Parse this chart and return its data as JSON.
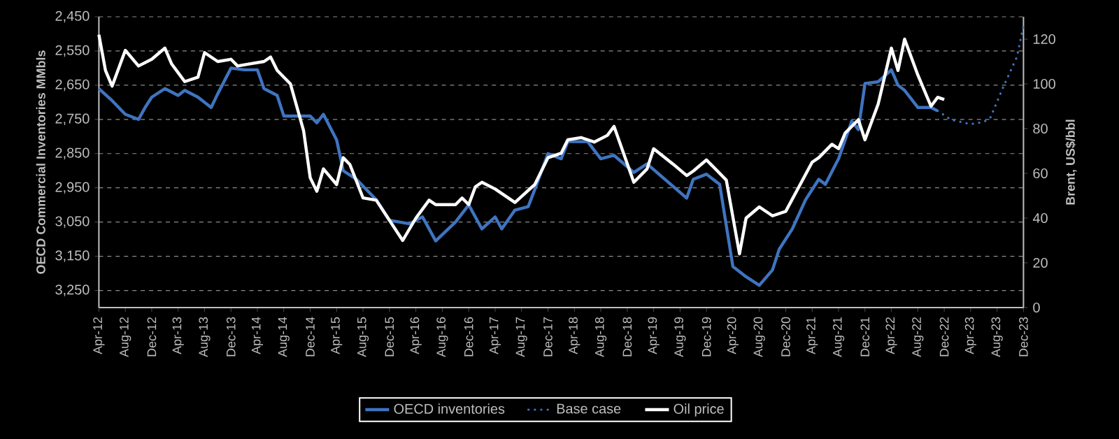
{
  "chart_data": {
    "type": "line",
    "ylabel": "OECD Commercial Inventories MMbls",
    "y2label": "Brent, US$/bbl",
    "xlim": [
      "2012-04",
      "2023-12"
    ],
    "xticks": [
      {
        "value": "2012-04",
        "label": "Apr-12"
      },
      {
        "value": "2012-08",
        "label": "Aug-12"
      },
      {
        "value": "2012-12",
        "label": "Dec-12"
      },
      {
        "value": "2013-04",
        "label": "Apr-13"
      },
      {
        "value": "2013-08",
        "label": "Aug-13"
      },
      {
        "value": "2013-12",
        "label": "Dec-13"
      },
      {
        "value": "2014-04",
        "label": "Apr-14"
      },
      {
        "value": "2014-08",
        "label": "Aug-14"
      },
      {
        "value": "2014-12",
        "label": "Dec-14"
      },
      {
        "value": "2015-04",
        "label": "Apr-15"
      },
      {
        "value": "2015-08",
        "label": "Aug-15"
      },
      {
        "value": "2015-12",
        "label": "Dec-15"
      },
      {
        "value": "2016-04",
        "label": "Apr-16"
      },
      {
        "value": "2016-08",
        "label": "Aug-16"
      },
      {
        "value": "2016-12",
        "label": "Dec-16"
      },
      {
        "value": "2017-04",
        "label": "Apr-17"
      },
      {
        "value": "2017-08",
        "label": "Aug-17"
      },
      {
        "value": "2017-12",
        "label": "Dec-17"
      },
      {
        "value": "2018-04",
        "label": "Apr-18"
      },
      {
        "value": "2018-08",
        "label": "Aug-18"
      },
      {
        "value": "2018-12",
        "label": "Dec-18"
      },
      {
        "value": "2019-04",
        "label": "Apr-19"
      },
      {
        "value": "2019-08",
        "label": "Aug-19"
      },
      {
        "value": "2019-12",
        "label": "Dec-19"
      },
      {
        "value": "2020-04",
        "label": "Apr-20"
      },
      {
        "value": "2020-08",
        "label": "Aug-20"
      },
      {
        "value": "2020-12",
        "label": "Dec-20"
      },
      {
        "value": "2021-04",
        "label": "Apr-21"
      },
      {
        "value": "2021-08",
        "label": "Aug-21"
      },
      {
        "value": "2021-12",
        "label": "Dec-21"
      },
      {
        "value": "2022-04",
        "label": "Apr-22"
      },
      {
        "value": "2022-08",
        "label": "Aug-22"
      },
      {
        "value": "2022-12",
        "label": "Dec-22"
      },
      {
        "value": "2023-04",
        "label": "Apr-23"
      },
      {
        "value": "2023-08",
        "label": "Aug-23"
      },
      {
        "value": "2023-12",
        "label": "Dec-23"
      }
    ],
    "ylim": [
      3300,
      2450
    ],
    "yticks": [
      {
        "value": 2450,
        "label": "2,450"
      },
      {
        "value": 2550,
        "label": "2,550"
      },
      {
        "value": 2650,
        "label": "2,650"
      },
      {
        "value": 2750,
        "label": "2,750"
      },
      {
        "value": 2850,
        "label": "2,850"
      },
      {
        "value": 2950,
        "label": "2,950"
      },
      {
        "value": 3050,
        "label": "3,050"
      },
      {
        "value": 3150,
        "label": "3,150"
      },
      {
        "value": 3250,
        "label": "3,250"
      }
    ],
    "y2lim": [
      0,
      130
    ],
    "y2ticks": [
      0,
      20,
      40,
      60,
      80,
      100,
      120
    ],
    "grid": "y",
    "legend": "bottom",
    "series": [
      {
        "name": "OECD inventories",
        "color": "#3f74c0",
        "axis": "y",
        "line_style": "solid",
        "x": [
          "2012-04",
          "2012-06",
          "2012-08",
          "2012-10",
          "2012-11",
          "2012-12",
          "2013-02",
          "2013-04",
          "2013-05",
          "2013-07",
          "2013-09",
          "2013-10",
          "2013-12",
          "2014-02",
          "2014-04",
          "2014-05",
          "2014-07",
          "2014-08",
          "2014-10",
          "2014-12",
          "2015-01",
          "2015-02",
          "2015-04",
          "2015-05",
          "2015-07",
          "2015-10",
          "2015-12",
          "2016-03",
          "2016-05",
          "2016-07",
          "2016-10",
          "2016-12",
          "2017-02",
          "2017-04",
          "2017-05",
          "2017-07",
          "2017-09",
          "2017-10",
          "2017-12",
          "2018-02",
          "2018-03",
          "2018-06",
          "2018-08",
          "2018-10",
          "2019-01",
          "2019-03",
          "2019-06",
          "2019-09",
          "2019-10",
          "2019-12",
          "2020-02",
          "2020-04",
          "2020-06",
          "2020-08",
          "2020-10",
          "2020-11",
          "2021-01",
          "2021-03",
          "2021-05",
          "2021-06",
          "2021-08",
          "2021-10",
          "2021-11",
          "2021-12",
          "2022-02",
          "2022-04",
          "2022-05",
          "2022-06",
          "2022-08",
          "2022-10",
          "2022-11"
        ],
        "values": [
          2660,
          2695,
          2735,
          2750,
          2715,
          2685,
          2660,
          2680,
          2665,
          2685,
          2715,
          2675,
          2600,
          2605,
          2605,
          2660,
          2680,
          2740,
          2740,
          2740,
          2760,
          2735,
          2810,
          2900,
          2925,
          2985,
          3045,
          3055,
          3035,
          3105,
          3050,
          3000,
          3070,
          3035,
          3070,
          3015,
          3005,
          2955,
          2850,
          2865,
          2815,
          2815,
          2865,
          2855,
          2905,
          2880,
          2930,
          2980,
          2925,
          2910,
          2940,
          3180,
          3210,
          3235,
          3190,
          3130,
          3070,
          2985,
          2925,
          2940,
          2865,
          2755,
          2780,
          2645,
          2640,
          2605,
          2650,
          2665,
          2715,
          2715,
          2725
        ]
      },
      {
        "name": "Base case",
        "color": "#3f74c0",
        "axis": "y2",
        "line_style": "dotted",
        "x": [
          "2022-11",
          "2023-01",
          "2023-04",
          "2023-06",
          "2023-07",
          "2023-09",
          "2023-11",
          "2023-12"
        ],
        "values": [
          88,
          84,
          82,
          83,
          85,
          99,
          112,
          126
        ]
      },
      {
        "name": "Oil price",
        "color": "#ffffff",
        "axis": "y2",
        "line_style": "solid",
        "x": [
          "2012-04",
          "2012-05",
          "2012-06",
          "2012-08",
          "2012-10",
          "2012-12",
          "2013-02",
          "2013-03",
          "2013-05",
          "2013-07",
          "2013-08",
          "2013-10",
          "2013-12",
          "2014-01",
          "2014-03",
          "2014-05",
          "2014-06",
          "2014-07",
          "2014-09",
          "2014-11",
          "2014-12",
          "2015-01",
          "2015-02",
          "2015-04",
          "2015-05",
          "2015-06",
          "2015-08",
          "2015-10",
          "2016-02",
          "2016-04",
          "2016-06",
          "2016-07",
          "2016-10",
          "2016-11",
          "2016-12",
          "2017-01",
          "2017-02",
          "2017-04",
          "2017-07",
          "2017-10",
          "2017-12",
          "2018-02",
          "2018-03",
          "2018-05",
          "2018-07",
          "2018-09",
          "2018-10",
          "2019-01",
          "2019-03",
          "2019-04",
          "2019-07",
          "2019-09",
          "2019-10",
          "2019-12",
          "2020-03",
          "2020-05",
          "2020-06",
          "2020-08",
          "2020-10",
          "2020-12",
          "2021-02",
          "2021-04",
          "2021-05",
          "2021-07",
          "2021-08",
          "2021-09",
          "2021-11",
          "2021-12",
          "2022-02",
          "2022-04",
          "2022-05",
          "2022-06",
          "2022-08",
          "2022-10",
          "2022-11",
          "2022-12"
        ],
        "values": [
          122,
          106,
          99,
          115,
          108,
          111,
          116,
          109,
          101,
          103,
          114,
          110,
          111,
          108,
          109,
          110,
          112,
          106,
          100,
          79,
          58,
          52,
          62,
          55,
          67,
          64,
          49,
          48,
          30,
          40,
          48,
          46,
          46,
          49,
          46,
          54,
          56,
          53,
          47,
          55,
          67,
          69,
          75,
          76,
          74,
          77,
          81,
          56,
          62,
          71,
          64,
          59,
          61,
          66,
          57,
          24,
          40,
          45,
          41,
          43,
          54,
          65,
          67,
          73,
          71,
          78,
          84,
          75,
          91,
          116,
          106,
          120,
          104,
          90,
          94,
          93
        ]
      }
    ]
  }
}
